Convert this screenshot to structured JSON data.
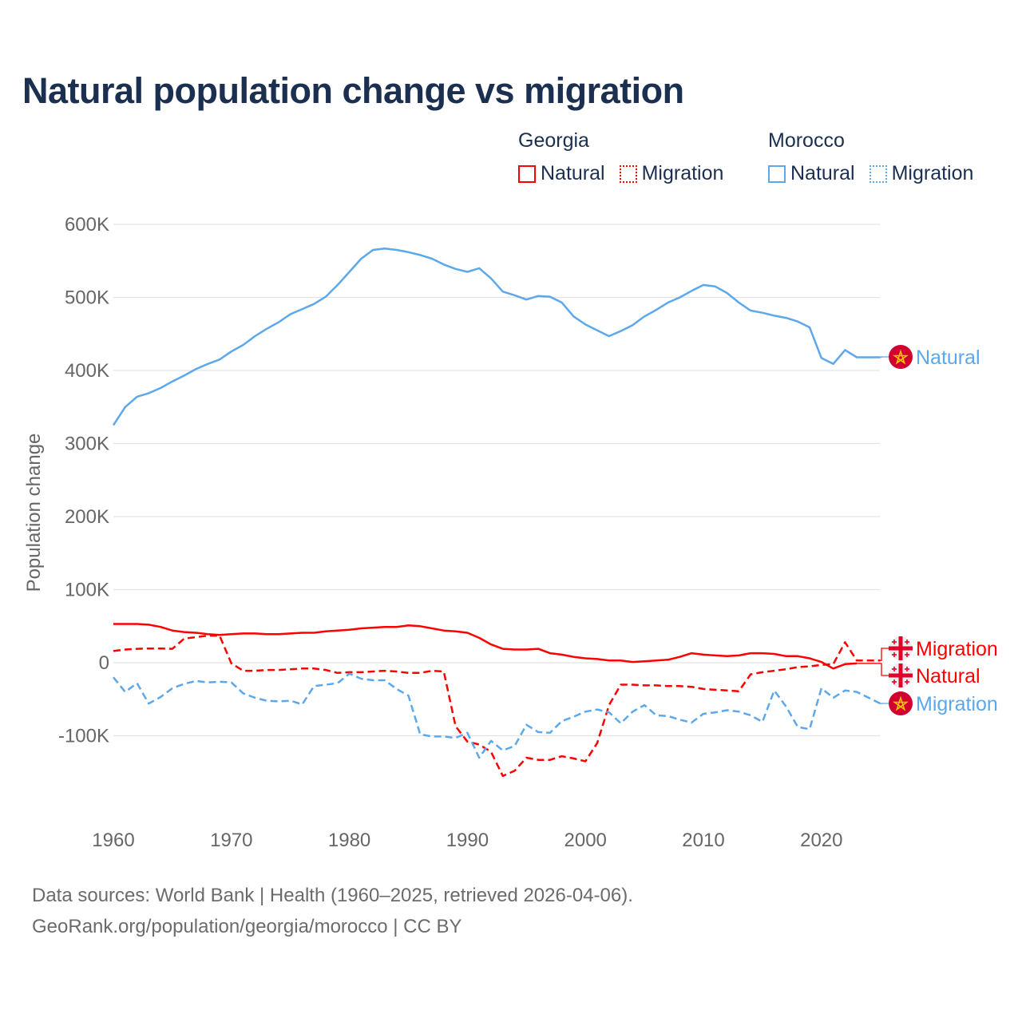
{
  "chart_data": {
    "type": "line",
    "title": "Natural population change vs migration",
    "xlabel": "",
    "ylabel": "Population change",
    "unit": "thousands",
    "xlim": [
      1960,
      2025
    ],
    "ylim": [
      -200,
      600
    ],
    "yticks": [
      600,
      500,
      400,
      300,
      200,
      100,
      0,
      -100
    ],
    "ytick_labels": [
      "600K",
      "500K",
      "400K",
      "300K",
      "200K",
      "100K",
      "0",
      "-100K"
    ],
    "xticks": [
      1960,
      1970,
      1980,
      1990,
      2000,
      2010,
      2020
    ],
    "xtick_labels": [
      "1960",
      "1970",
      "1980",
      "1990",
      "2000",
      "2010",
      "2020"
    ],
    "grid": true,
    "legend": {
      "placement": "top-right",
      "groups": [
        {
          "name": "Georgia",
          "items": [
            "Natural",
            "Migration"
          ]
        },
        {
          "name": "Morocco",
          "items": [
            "Natural",
            "Migration"
          ]
        }
      ]
    },
    "x_start": 1960,
    "series": [
      {
        "name": "Morocco Natural",
        "country": "Morocco",
        "kind": "Natural",
        "label": "Natural",
        "color": "#5da8ea",
        "dashed": false,
        "values": [
          325,
          350,
          364,
          369,
          376,
          385,
          393,
          402,
          409,
          415,
          426,
          435,
          447,
          457,
          466,
          477,
          484,
          491,
          501,
          517,
          535,
          553,
          565,
          567,
          565,
          562,
          558,
          553,
          545,
          539,
          535,
          540,
          526,
          508,
          503,
          497,
          502,
          501,
          493,
          474,
          463,
          455,
          447,
          454,
          462,
          474,
          483,
          493,
          500,
          509,
          517,
          515,
          506,
          493,
          482,
          479,
          475,
          472,
          467,
          459,
          417,
          409,
          428,
          418,
          418,
          418
        ]
      },
      {
        "name": "Georgia Migration",
        "country": "Georgia",
        "kind": "Migration",
        "label": "Migration",
        "color": "#ff0000",
        "dashed": true,
        "values": [
          16,
          18,
          19,
          19.5,
          19.5,
          19,
          33,
          35,
          37,
          37,
          -1,
          -11,
          -11,
          -10,
          -10,
          -9,
          -8,
          -8,
          -10,
          -14,
          -13,
          -13,
          -12,
          -11,
          -12,
          -14,
          -14,
          -11,
          -12,
          -87,
          -108,
          -112,
          -122,
          -155,
          -148,
          -130,
          -133,
          -133,
          -128,
          -131,
          -135,
          -110,
          -58,
          -30,
          -30,
          -31,
          -31,
          -32,
          -32,
          -33,
          -36,
          -37,
          -38,
          -39,
          -16,
          -13,
          -11,
          -9,
          -6,
          -5,
          -3,
          -2,
          28,
          3,
          3,
          3
        ]
      },
      {
        "name": "Georgia Natural",
        "country": "Georgia",
        "kind": "Natural",
        "label": "Natural",
        "color": "#ff0000",
        "dashed": false,
        "values": [
          53,
          53,
          53,
          52,
          49,
          44,
          42,
          41,
          39,
          38,
          39,
          40,
          40,
          39,
          39,
          40,
          41,
          41,
          43,
          44,
          45,
          47,
          48,
          49,
          49,
          51,
          50,
          47,
          44,
          43,
          41,
          34,
          25,
          19,
          18,
          18,
          19,
          13,
          11,
          8,
          6,
          5,
          3,
          3,
          1,
          2,
          3,
          4,
          8,
          13,
          11,
          10,
          9,
          10,
          13,
          13,
          12,
          9,
          9,
          6,
          1,
          -8,
          -2,
          -1,
          null,
          null
        ]
      },
      {
        "name": "Morocco Migration",
        "country": "Morocco",
        "kind": "Migration",
        "label": "Migration",
        "color": "#5da8ea",
        "dashed": true,
        "values": [
          -20,
          -40,
          -28,
          -56,
          -47,
          -35,
          -29,
          -25,
          -27,
          -26,
          -27,
          -42,
          -48,
          -52,
          -53,
          -52,
          -57,
          -32,
          -30,
          -28,
          -15,
          -22,
          -24,
          -24,
          -36,
          -45,
          -98,
          -101,
          -101,
          -103,
          -96,
          -130,
          -107,
          -120,
          -114,
          -85,
          -95,
          -96,
          -80,
          -74,
          -67,
          -64,
          -68,
          -83,
          -67,
          -58,
          -72,
          -73,
          -78,
          -82,
          -70,
          -68,
          -65,
          -67,
          -72,
          -81,
          -38,
          -60,
          -88,
          -91,
          -35,
          -48,
          -38,
          -40,
          -48,
          -56
        ]
      }
    ]
  },
  "footer": {
    "line1": "Data sources: World Bank | Health (1960–2025, retrieved 2026-04-06).",
    "line2": "GeoRank.org/population/georgia/morocco | CC BY"
  },
  "colors": {
    "georgia": "#ff0000",
    "morocco": "#5da8ea",
    "title": "#1b2f50"
  }
}
